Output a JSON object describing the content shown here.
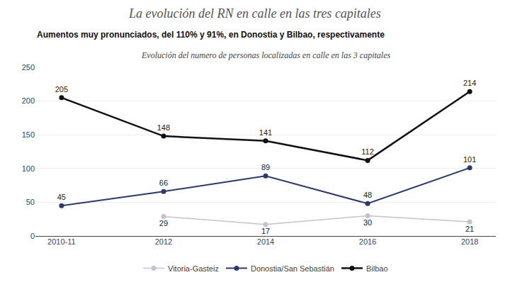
{
  "chart_data": {
    "type": "line",
    "title": "La evolución del RN en calle en las tres capitales",
    "subtitle": "Aumentos muy pronunciados, del 110% y 91%, en Donostia y Bilbao, respectivamente",
    "annotations": [
      "Evolución del numero de personas localizadas en calle en las 3 capitales"
    ],
    "categories": [
      "2010-11",
      "2012",
      "2014",
      "2016",
      "2018"
    ],
    "series": [
      {
        "name": "Vitoria-Gasteiz",
        "color": "#c8c0d0",
        "values": [
          null,
          29,
          17,
          30,
          21
        ]
      },
      {
        "name": "Donostia/San Sebastián",
        "color": "#2b3a6b",
        "values": [
          45,
          66,
          89,
          48,
          101
        ]
      },
      {
        "name": "Bilbao",
        "color": "#111111",
        "values": [
          205,
          148,
          141,
          112,
          214
        ]
      }
    ],
    "ylim": [
      0,
      250
    ],
    "yticks": [
      0,
      50,
      100,
      150,
      200,
      250
    ],
    "grid": true,
    "legend": "bottom",
    "data_labels": true,
    "marker": "circle"
  }
}
